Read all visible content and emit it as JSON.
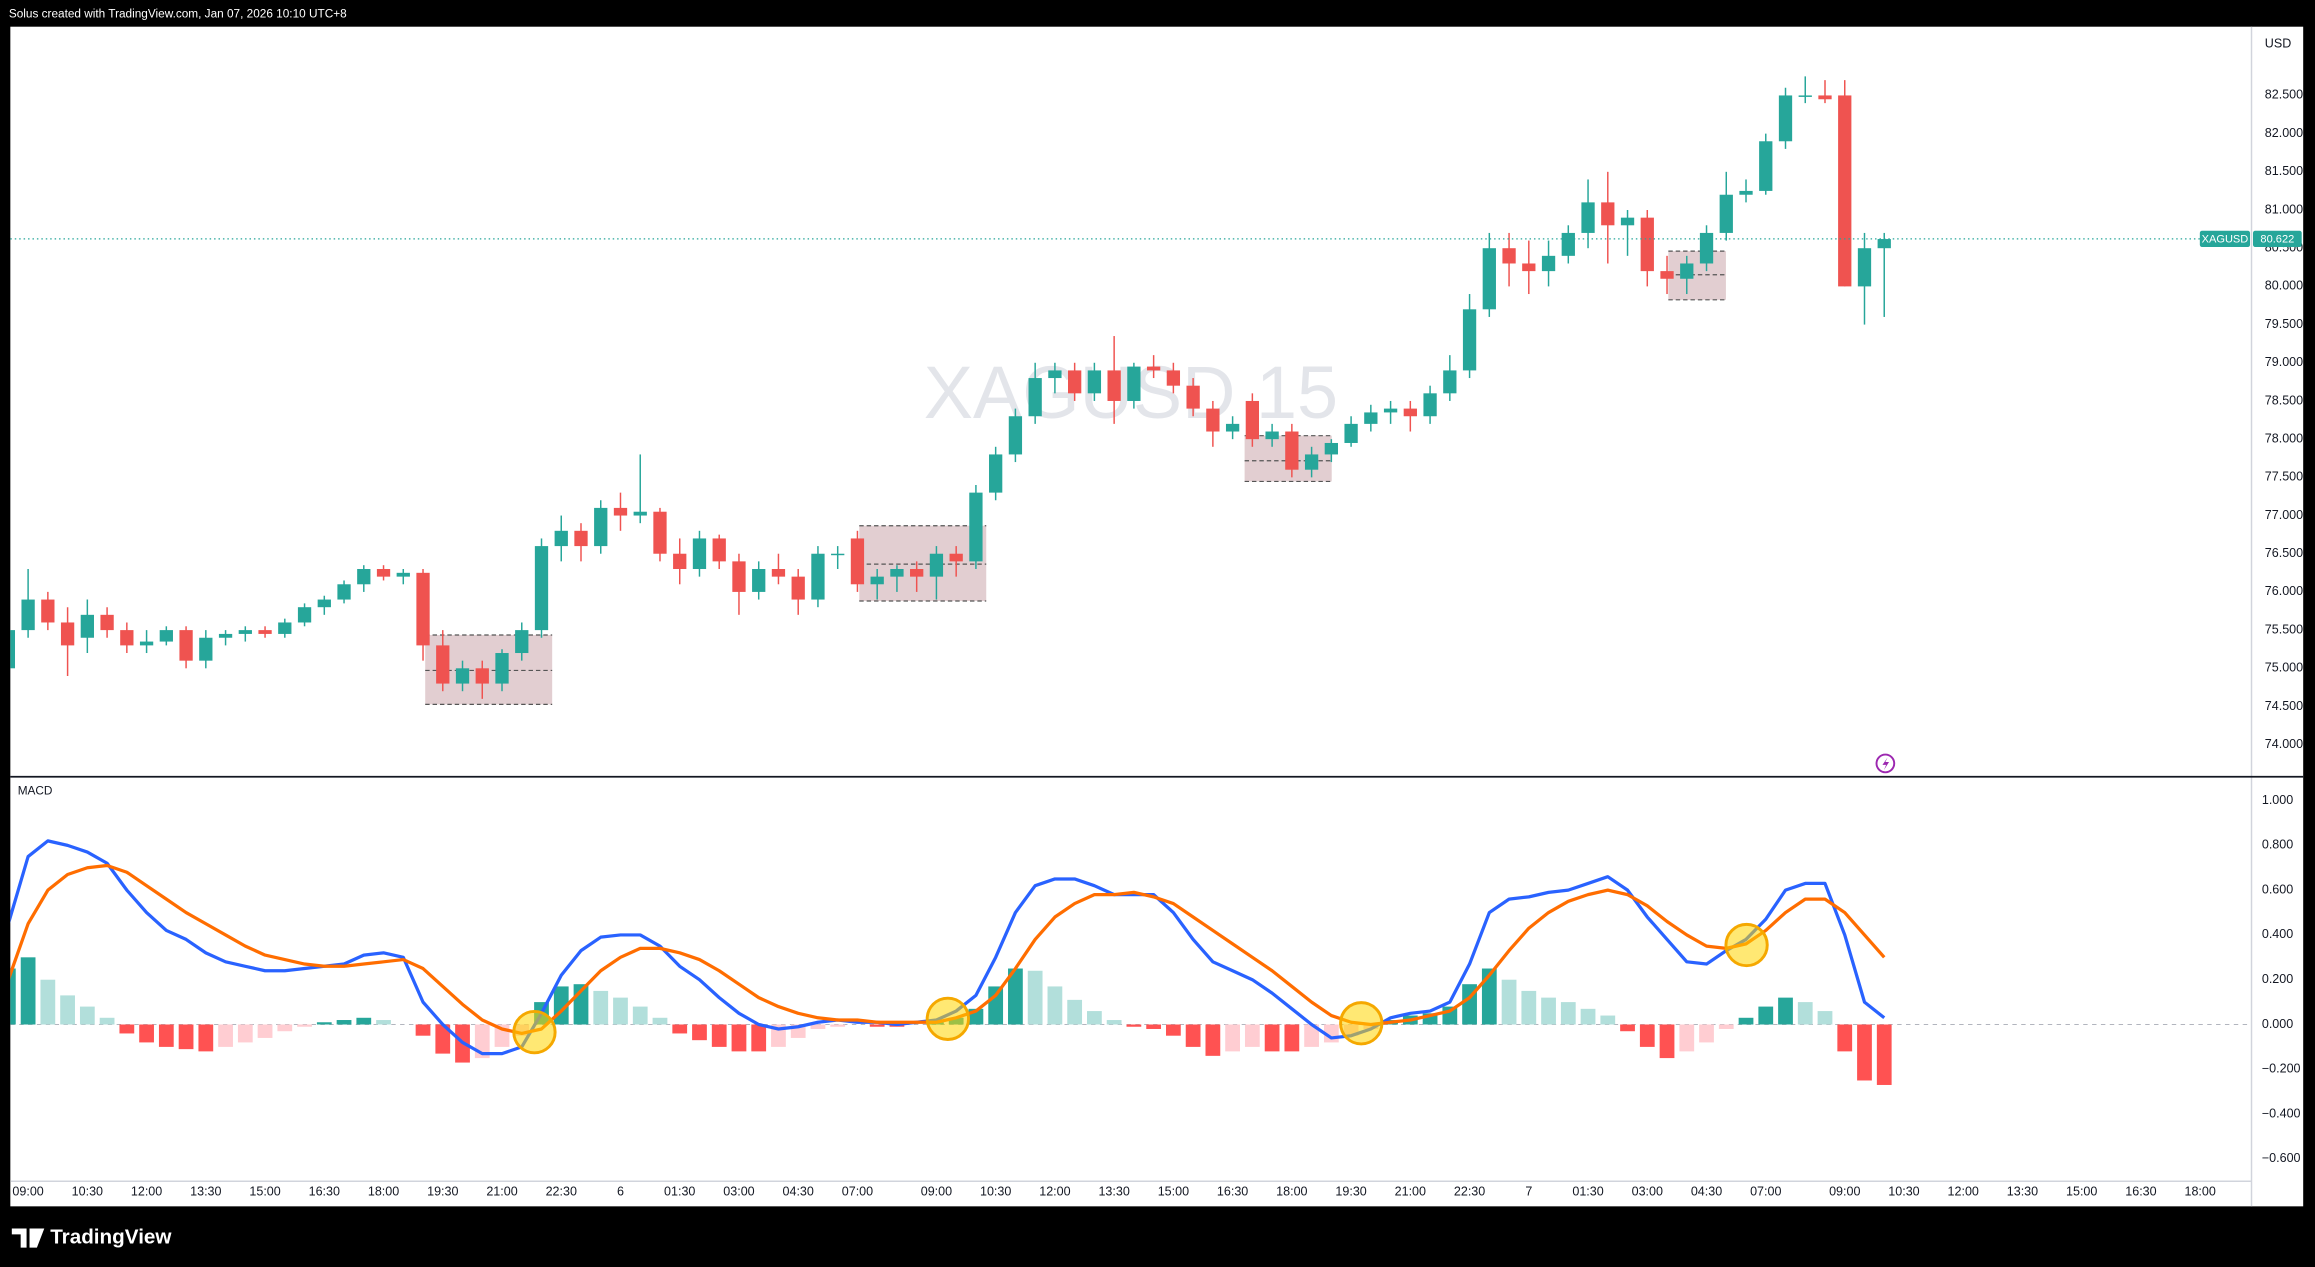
{
  "header": {
    "caption": "Solus created with TradingView.com, Jan 07, 2026 10:10 UTC+8"
  },
  "footer": {
    "brand": "TradingView"
  },
  "chart_data": [
    {
      "type": "candlestick",
      "watermark": "XAGUSD 15",
      "currency": "USD",
      "symbol": "XAGUSD",
      "last_price": {
        "value": 80.622,
        "label": "80.622"
      },
      "up_color": "#26a69a",
      "down_color": "#ef5350",
      "xlim": [
        0.1,
        113.6
      ],
      "ylim": [
        73.6,
        83.4
      ],
      "yticks": [
        {
          "value": 74,
          "label": "74.000"
        },
        {
          "value": 74.5,
          "label": "74.500"
        },
        {
          "value": 75,
          "label": "75.000"
        },
        {
          "value": 75.5,
          "label": "75.500"
        },
        {
          "value": 76,
          "label": "76.000"
        },
        {
          "value": 76.5,
          "label": "76.500"
        },
        {
          "value": 77,
          "label": "77.000"
        },
        {
          "value": 77.5,
          "label": "77.500"
        },
        {
          "value": 78,
          "label": "78.000"
        },
        {
          "value": 78.5,
          "label": "78.500"
        },
        {
          "value": 79,
          "label": "79.000"
        },
        {
          "value": 79.5,
          "label": "79.500"
        },
        {
          "value": 80,
          "label": "80.000"
        },
        {
          "value": 80.5,
          "label": "80.500"
        },
        {
          "value": 81,
          "label": "81.000"
        },
        {
          "value": 81.5,
          "label": "81.500"
        },
        {
          "value": 82,
          "label": "82.000"
        },
        {
          "value": 82.5,
          "label": "82.500"
        }
      ],
      "ohlc": [
        [
          75.0,
          75.6,
          74.8,
          75.5
        ],
        [
          75.5,
          76.3,
          75.4,
          75.9
        ],
        [
          75.9,
          76.0,
          75.5,
          75.6
        ],
        [
          75.6,
          75.8,
          74.9,
          75.3
        ],
        [
          75.4,
          75.9,
          75.2,
          75.7
        ],
        [
          75.7,
          75.8,
          75.4,
          75.5
        ],
        [
          75.5,
          75.6,
          75.2,
          75.3
        ],
        [
          75.3,
          75.5,
          75.2,
          75.35
        ],
        [
          75.35,
          75.55,
          75.3,
          75.5
        ],
        [
          75.5,
          75.55,
          75.0,
          75.1
        ],
        [
          75.1,
          75.5,
          75.0,
          75.4
        ],
        [
          75.4,
          75.5,
          75.3,
          75.45
        ],
        [
          75.45,
          75.55,
          75.35,
          75.5
        ],
        [
          75.5,
          75.55,
          75.4,
          75.45
        ],
        [
          75.45,
          75.65,
          75.4,
          75.6
        ],
        [
          75.6,
          75.85,
          75.55,
          75.8
        ],
        [
          75.8,
          75.95,
          75.7,
          75.9
        ],
        [
          75.9,
          76.15,
          75.85,
          76.1
        ],
        [
          76.1,
          76.35,
          76.0,
          76.3
        ],
        [
          76.3,
          76.35,
          76.15,
          76.2
        ],
        [
          76.2,
          76.3,
          76.1,
          76.25
        ],
        [
          76.25,
          76.3,
          75.1,
          75.3
        ],
        [
          75.3,
          75.5,
          74.7,
          74.8
        ],
        [
          74.8,
          75.1,
          74.7,
          75.0
        ],
        [
          75.0,
          75.1,
          74.6,
          74.8
        ],
        [
          74.8,
          75.25,
          74.7,
          75.2
        ],
        [
          75.2,
          75.6,
          75.1,
          75.5
        ],
        [
          75.5,
          76.7,
          75.4,
          76.6
        ],
        [
          76.6,
          77.0,
          76.4,
          76.8
        ],
        [
          76.8,
          76.9,
          76.4,
          76.6
        ],
        [
          76.6,
          77.2,
          76.5,
          77.1
        ],
        [
          77.1,
          77.3,
          76.8,
          77.0
        ],
        [
          77.0,
          77.8,
          76.9,
          77.05
        ],
        [
          77.05,
          77.1,
          76.4,
          76.5
        ],
        [
          76.5,
          76.7,
          76.1,
          76.3
        ],
        [
          76.3,
          76.8,
          76.2,
          76.7
        ],
        [
          76.7,
          76.75,
          76.3,
          76.4
        ],
        [
          76.4,
          76.5,
          75.7,
          76.0
        ],
        [
          76.0,
          76.4,
          75.9,
          76.3
        ],
        [
          76.3,
          76.5,
          76.1,
          76.2
        ],
        [
          76.2,
          76.3,
          75.7,
          75.9
        ],
        [
          75.9,
          76.6,
          75.8,
          76.5
        ],
        [
          76.5,
          76.6,
          76.3,
          76.5
        ],
        [
          76.7,
          76.8,
          76.0,
          76.1
        ],
        [
          76.1,
          76.3,
          75.9,
          76.2
        ],
        [
          76.2,
          76.35,
          76.0,
          76.3
        ],
        [
          76.3,
          76.4,
          76.0,
          76.2
        ],
        [
          76.2,
          76.6,
          75.9,
          76.5
        ],
        [
          76.5,
          76.6,
          76.2,
          76.4
        ],
        [
          76.4,
          77.4,
          76.3,
          77.3
        ],
        [
          77.3,
          77.9,
          77.2,
          77.8
        ],
        [
          77.8,
          78.4,
          77.7,
          78.3
        ],
        [
          78.3,
          79.0,
          78.2,
          78.8
        ],
        [
          78.8,
          79.0,
          78.6,
          78.9
        ],
        [
          78.9,
          79.0,
          78.5,
          78.6
        ],
        [
          78.6,
          79.0,
          78.5,
          78.9
        ],
        [
          78.9,
          79.35,
          78.2,
          78.5
        ],
        [
          78.5,
          79.0,
          78.4,
          78.95
        ],
        [
          78.95,
          79.1,
          78.8,
          78.9
        ],
        [
          78.9,
          79.0,
          78.6,
          78.7
        ],
        [
          78.7,
          78.8,
          78.3,
          78.4
        ],
        [
          78.4,
          78.5,
          77.9,
          78.1
        ],
        [
          78.1,
          78.3,
          78.0,
          78.2
        ],
        [
          78.5,
          78.6,
          77.9,
          78.0
        ],
        [
          78.0,
          78.2,
          77.9,
          78.1
        ],
        [
          78.1,
          78.2,
          77.5,
          77.6
        ],
        [
          77.6,
          77.9,
          77.5,
          77.8
        ],
        [
          77.8,
          78.0,
          77.7,
          77.95
        ],
        [
          77.95,
          78.3,
          77.9,
          78.2
        ],
        [
          78.2,
          78.45,
          78.1,
          78.35
        ],
        [
          78.35,
          78.5,
          78.2,
          78.4
        ],
        [
          78.4,
          78.5,
          78.1,
          78.3
        ],
        [
          78.3,
          78.7,
          78.2,
          78.6
        ],
        [
          78.6,
          79.1,
          78.5,
          78.9
        ],
        [
          78.9,
          79.9,
          78.8,
          79.7
        ],
        [
          79.7,
          80.7,
          79.6,
          80.5
        ],
        [
          80.5,
          80.7,
          80.0,
          80.3
        ],
        [
          80.3,
          80.6,
          79.9,
          80.2
        ],
        [
          80.2,
          80.6,
          80.0,
          80.4
        ],
        [
          80.4,
          80.8,
          80.3,
          80.7
        ],
        [
          80.7,
          81.4,
          80.5,
          81.1
        ],
        [
          81.1,
          81.5,
          80.3,
          80.8
        ],
        [
          80.8,
          81.0,
          80.4,
          80.9
        ],
        [
          80.9,
          81.0,
          80.0,
          80.2
        ],
        [
          80.2,
          80.4,
          79.9,
          80.1
        ],
        [
          80.1,
          80.4,
          79.9,
          80.3
        ],
        [
          80.3,
          80.8,
          80.2,
          80.7
        ],
        [
          80.7,
          81.5,
          80.6,
          81.2
        ],
        [
          81.2,
          81.4,
          81.1,
          81.25
        ],
        [
          81.25,
          82.0,
          81.2,
          81.9
        ],
        [
          81.9,
          82.6,
          81.8,
          82.5
        ],
        [
          82.5,
          82.75,
          82.4,
          82.5
        ],
        [
          82.5,
          82.7,
          82.4,
          82.45
        ],
        [
          82.5,
          82.7,
          80.0,
          80.0
        ],
        [
          80.0,
          80.7,
          79.5,
          80.5
        ],
        [
          80.5,
          80.7,
          79.6,
          80.62
        ]
      ]
    },
    {
      "type": "macd",
      "title": "MACD",
      "xlim": [
        0.1,
        113.6
      ],
      "ylim": [
        -0.7,
        1.1
      ],
      "yticks": [
        {
          "value": 1,
          "label": "1.000"
        },
        {
          "value": 0.8,
          "label": "0.800"
        },
        {
          "value": 0.6,
          "label": "0.600"
        },
        {
          "value": 0.4,
          "label": "0.400"
        },
        {
          "value": 0.2,
          "label": "0.200"
        },
        {
          "value": 0,
          "label": "0.000"
        },
        {
          "value": -0.2,
          "label": "−0.200"
        },
        {
          "value": -0.4,
          "label": "−0.400"
        },
        {
          "value": -0.6,
          "label": "−0.600"
        }
      ],
      "xticks": [
        {
          "value": 1,
          "label": "09:00"
        },
        {
          "value": 4,
          "label": "10:30"
        },
        {
          "value": 7,
          "label": "12:00"
        },
        {
          "value": 10,
          "label": "13:30"
        },
        {
          "value": 13,
          "label": "15:00"
        },
        {
          "value": 16,
          "label": "16:30"
        },
        {
          "value": 19,
          "label": "18:00"
        },
        {
          "value": 22,
          "label": "19:30"
        },
        {
          "value": 25,
          "label": "21:00"
        },
        {
          "value": 28,
          "label": "22:30"
        },
        {
          "value": 31,
          "label": "6"
        },
        {
          "value": 34,
          "label": "01:30"
        },
        {
          "value": 37,
          "label": "03:00"
        },
        {
          "value": 40,
          "label": "04:30"
        },
        {
          "value": 43,
          "label": "07:00"
        },
        {
          "value": 47,
          "label": "09:00"
        },
        {
          "value": 50,
          "label": "10:30"
        },
        {
          "value": 53,
          "label": "12:00"
        },
        {
          "value": 56,
          "label": "13:30"
        },
        {
          "value": 59,
          "label": "15:00"
        },
        {
          "value": 62,
          "label": "16:30"
        },
        {
          "value": 65,
          "label": "18:00"
        },
        {
          "value": 68,
          "label": "19:30"
        },
        {
          "value": 71,
          "label": "21:00"
        },
        {
          "value": 74,
          "label": "22:30"
        },
        {
          "value": 77,
          "label": "7"
        },
        {
          "value": 80,
          "label": "01:30"
        },
        {
          "value": 83,
          "label": "03:00"
        },
        {
          "value": 86,
          "label": "04:30"
        },
        {
          "value": 89,
          "label": "07:00"
        },
        {
          "value": 93,
          "label": "09:00"
        },
        {
          "value": 96,
          "label": "10:30"
        },
        {
          "value": 99,
          "label": "12:00"
        },
        {
          "value": 102,
          "label": "13:30"
        },
        {
          "value": 105,
          "label": "15:00"
        },
        {
          "value": 108,
          "label": "16:30"
        },
        {
          "value": 111,
          "label": "18:00"
        }
      ],
      "histogram_colors": [
        "#26a69a",
        "#b2dfdb",
        "#ff5252",
        "#ffcdd2"
      ],
      "histogram": [
        0.25,
        0.3,
        0.2,
        0.13,
        0.08,
        0.03,
        -0.04,
        -0.08,
        -0.1,
        -0.11,
        -0.12,
        -0.1,
        -0.08,
        -0.06,
        -0.03,
        -0.01,
        0.01,
        0.02,
        0.03,
        0.02,
        0,
        -0.05,
        -0.13,
        -0.17,
        -0.15,
        -0.1,
        -0.05,
        0.1,
        0.17,
        0.18,
        0.15,
        0.12,
        0.08,
        0.03,
        -0.04,
        -0.07,
        -0.1,
        -0.12,
        -0.12,
        -0.1,
        -0.06,
        -0.02,
        -0.01,
        0,
        -0.01,
        -0.01,
        0,
        0.01,
        0.03,
        0.07,
        0.17,
        0.25,
        0.24,
        0.17,
        0.11,
        0.06,
        0.02,
        -0.01,
        -0.02,
        -0.05,
        -0.1,
        -0.14,
        -0.12,
        -0.1,
        -0.12,
        -0.12,
        -0.1,
        -0.08,
        -0.05,
        -0.02,
        0.02,
        0.04,
        0.05,
        0.08,
        0.18,
        0.25,
        0.2,
        0.15,
        0.12,
        0.1,
        0.07,
        0.04,
        -0.03,
        -0.1,
        -0.15,
        -0.12,
        -0.08,
        -0.02,
        0.03,
        0.08,
        0.12,
        0.1,
        0.06,
        -0.12,
        -0.25,
        -0.27
      ],
      "series": [
        {
          "color": "#2962ff",
          "values": [
            0.45,
            0.75,
            0.82,
            0.8,
            0.77,
            0.72,
            0.6,
            0.5,
            0.42,
            0.38,
            0.32,
            0.28,
            0.26,
            0.24,
            0.24,
            0.25,
            0.26,
            0.27,
            0.31,
            0.32,
            0.3,
            0.1,
            0,
            -0.08,
            -0.13,
            -0.13,
            -0.1,
            0.05,
            0.22,
            0.33,
            0.39,
            0.4,
            0.4,
            0.35,
            0.26,
            0.2,
            0.12,
            0.05,
            0,
            -0.02,
            -0.01,
            0.01,
            0.02,
            0.01,
            0.01,
            0,
            0.01,
            0.02,
            0.06,
            0.13,
            0.3,
            0.5,
            0.62,
            0.65,
            0.65,
            0.62,
            0.58,
            0.58,
            0.58,
            0.5,
            0.38,
            0.28,
            0.24,
            0.2,
            0.14,
            0.07,
            0,
            -0.06,
            -0.05,
            -0.02,
            0.03,
            0.05,
            0.06,
            0.1,
            0.27,
            0.5,
            0.56,
            0.57,
            0.59,
            0.6,
            0.63,
            0.66,
            0.6,
            0.48,
            0.38,
            0.28,
            0.27,
            0.33,
            0.38,
            0.47,
            0.6,
            0.63,
            0.63,
            0.4,
            0.1,
            0.03
          ]
        },
        {
          "color": "#ff6d00",
          "values": [
            0.2,
            0.45,
            0.6,
            0.67,
            0.7,
            0.71,
            0.68,
            0.62,
            0.56,
            0.5,
            0.45,
            0.4,
            0.35,
            0.31,
            0.29,
            0.27,
            0.26,
            0.26,
            0.27,
            0.28,
            0.29,
            0.25,
            0.17,
            0.09,
            0.02,
            -0.02,
            -0.04,
            -0.02,
            0.06,
            0.15,
            0.24,
            0.3,
            0.34,
            0.34,
            0.32,
            0.29,
            0.24,
            0.18,
            0.12,
            0.08,
            0.05,
            0.03,
            0.02,
            0.02,
            0.01,
            0.01,
            0.01,
            0.01,
            0.03,
            0.06,
            0.13,
            0.25,
            0.38,
            0.48,
            0.54,
            0.58,
            0.58,
            0.59,
            0.57,
            0.54,
            0.48,
            0.42,
            0.36,
            0.3,
            0.24,
            0.17,
            0.1,
            0.04,
            0.01,
            0,
            0.01,
            0.02,
            0.04,
            0.06,
            0.12,
            0.22,
            0.33,
            0.43,
            0.5,
            0.55,
            0.58,
            0.6,
            0.58,
            0.53,
            0.46,
            0.4,
            0.35,
            0.34,
            0.36,
            0.42,
            0.5,
            0.56,
            0.56,
            0.5,
            0.4,
            0.3
          ]
        }
      ]
    }
  ]
}
